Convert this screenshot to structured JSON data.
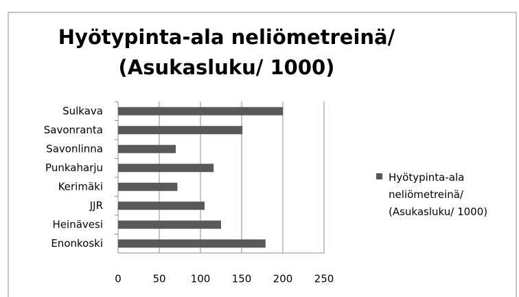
{
  "chart_data": {
    "type": "bar",
    "orientation": "horizontal",
    "title": "Hyötypinta-ala neliömetreinä/ (Asukasluku/ 1000)",
    "categories": [
      "Sulkava",
      "Savonranta",
      "Savonlinna",
      "Punkaharju",
      "Kerimäki",
      "JJR",
      "Heinävesi",
      "Enonkoski"
    ],
    "series": [
      {
        "name": "Hyötypinta-ala neliömetreinä/ (Asukasluku/ 1000)",
        "color": "#595959",
        "values": [
          200,
          151,
          70,
          116,
          72,
          105,
          125,
          179
        ]
      }
    ],
    "xlim": [
      0,
      250
    ],
    "xticks": [
      0,
      50,
      100,
      150,
      200,
      250
    ],
    "grid": true,
    "legend": "right"
  }
}
